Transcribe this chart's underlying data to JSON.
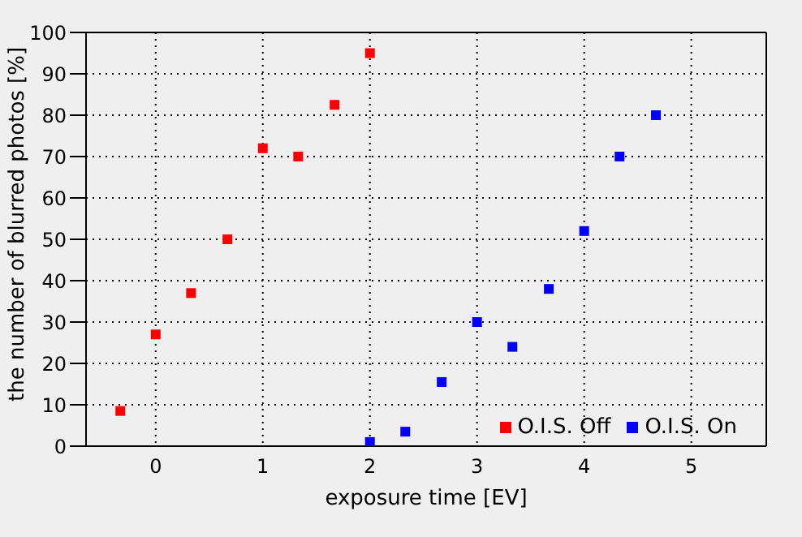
{
  "chart_data": {
    "type": "scatter",
    "xlabel": "exposure time [EV]",
    "ylabel": "the number of blurred photos [%]",
    "xlim": [
      -0.65,
      5.7
    ],
    "xticks": [
      0,
      1,
      2,
      3,
      4,
      5
    ],
    "ylim": [
      0,
      100
    ],
    "yticks": [
      0,
      10,
      20,
      30,
      40,
      50,
      60,
      70,
      80,
      90,
      100
    ],
    "grid": true,
    "legend": "bottom right",
    "marker": "square",
    "series": [
      {
        "name": "O.I.S. Off",
        "color": "#ff0000",
        "x": [
          -0.33,
          0,
          0.33,
          0.67,
          1,
          1.33,
          1.67,
          2
        ],
        "values": [
          8.5,
          27,
          37,
          50,
          72,
          70,
          82.5,
          95
        ]
      },
      {
        "name": "O.I.S. On",
        "color": "#0000ff",
        "x": [
          2,
          2.33,
          2.67,
          3,
          3.33,
          3.67,
          4,
          4.33,
          4.67
        ],
        "values": [
          1,
          3.5,
          15.5,
          30,
          24,
          38,
          52,
          70,
          80
        ]
      }
    ]
  }
}
